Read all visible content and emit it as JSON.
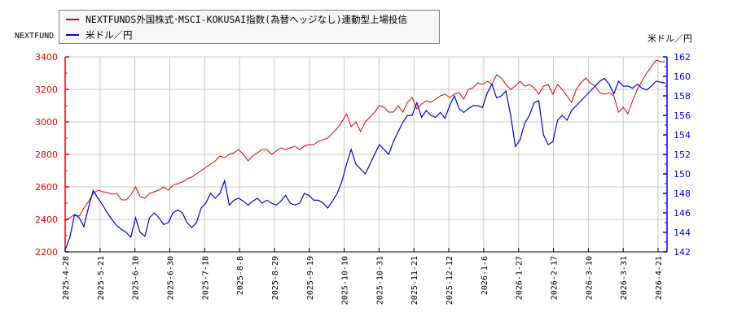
{
  "legend": {
    "series1_label": "NEXTFUNDS外国株式･MSCI-KOKUSAI指数(為替ヘッジなし)連動型上場投信",
    "series2_label": "米ドル／円"
  },
  "axes": {
    "left_title": "NEXTFUND",
    "right_title": "米ドル／円"
  },
  "colors": {
    "series1": "#dd0000",
    "series2": "#0000dd",
    "left_axis": "#ee0000",
    "right_axis": "#0000ee",
    "grid": "#c8c8c8"
  },
  "chart_data": {
    "type": "line",
    "title": "",
    "xlabel": "",
    "ylabel_left": "NEXTFUND",
    "ylabel_right": "米ドル／円",
    "ylim_left": [
      2200,
      3400
    ],
    "ylim_right": [
      142,
      162
    ],
    "yticks_left": [
      2200,
      2400,
      2600,
      2800,
      3000,
      3200,
      3400
    ],
    "yticks_right": [
      142,
      144,
      146,
      148,
      150,
      152,
      154,
      156,
      158,
      160,
      162
    ],
    "x_tick_labels": [
      "2025-4-28",
      "2025-5-21",
      "2025-6-10",
      "2025-6-30",
      "2025-7-18",
      "2025-8-8",
      "2025-8-29",
      "2025-9-19",
      "2025-10-10",
      "2025-10-31",
      "2025-11-21",
      "2025-12-12",
      "2026-1-6",
      "2026-1-27",
      "2026-2-17",
      "2026-3-10",
      "2026-3-31",
      "2026-4-21"
    ],
    "grid": true,
    "legend_position": "top-left",
    "series": [
      {
        "name": "NEXTFUNDS外国株式･MSCI-KOKUSAI指数(為替ヘッジなし)連動型上場投信",
        "axis": "left",
        "values_by_tick": [
          2390,
          2580,
          2550,
          2620,
          2700,
          2790,
          2840,
          2850,
          2920,
          3070,
          3110,
          3150,
          3220,
          3280,
          3200,
          3200,
          3150,
          3370
        ],
        "points": [
          [
            0,
            2390
          ],
          [
            1,
            2410
          ],
          [
            2,
            2430
          ],
          [
            3,
            2420
          ],
          [
            4,
            2470
          ],
          [
            5,
            2510
          ],
          [
            6,
            2560
          ],
          [
            7,
            2580
          ],
          [
            8,
            2570
          ],
          [
            9,
            2565
          ],
          [
            10,
            2555
          ],
          [
            11,
            2560
          ],
          [
            12,
            2520
          ],
          [
            13,
            2520
          ],
          [
            14,
            2550
          ],
          [
            15,
            2600
          ],
          [
            16,
            2540
          ],
          [
            17,
            2530
          ],
          [
            18,
            2560
          ],
          [
            19,
            2570
          ],
          [
            20,
            2580
          ],
          [
            21,
            2600
          ],
          [
            22,
            2580
          ],
          [
            23,
            2610
          ],
          [
            24,
            2620
          ],
          [
            25,
            2630
          ],
          [
            26,
            2650
          ],
          [
            27,
            2660
          ],
          [
            28,
            2680
          ],
          [
            29,
            2700
          ],
          [
            30,
            2720
          ],
          [
            31,
            2740
          ],
          [
            32,
            2760
          ],
          [
            33,
            2790
          ],
          [
            34,
            2780
          ],
          [
            35,
            2800
          ],
          [
            36,
            2810
          ],
          [
            37,
            2830
          ],
          [
            38,
            2800
          ],
          [
            39,
            2760
          ],
          [
            40,
            2790
          ],
          [
            41,
            2810
          ],
          [
            42,
            2830
          ],
          [
            43,
            2830
          ],
          [
            44,
            2800
          ],
          [
            45,
            2820
          ],
          [
            46,
            2840
          ],
          [
            47,
            2830
          ],
          [
            48,
            2840
          ],
          [
            49,
            2850
          ],
          [
            50,
            2830
          ],
          [
            51,
            2850
          ],
          [
            52,
            2860
          ],
          [
            53,
            2860
          ],
          [
            54,
            2880
          ],
          [
            55,
            2890
          ],
          [
            56,
            2900
          ],
          [
            57,
            2930
          ],
          [
            58,
            2960
          ],
          [
            59,
            3000
          ],
          [
            60,
            3050
          ],
          [
            61,
            2970
          ],
          [
            62,
            3000
          ],
          [
            63,
            2940
          ],
          [
            64,
            3000
          ],
          [
            65,
            3030
          ],
          [
            66,
            3060
          ],
          [
            67,
            3100
          ],
          [
            68,
            3090
          ],
          [
            69,
            3060
          ],
          [
            70,
            3060
          ],
          [
            71,
            3100
          ],
          [
            72,
            3060
          ],
          [
            73,
            3120
          ],
          [
            74,
            3150
          ],
          [
            75,
            3080
          ],
          [
            76,
            3110
          ],
          [
            77,
            3130
          ],
          [
            78,
            3120
          ],
          [
            79,
            3140
          ],
          [
            80,
            3160
          ],
          [
            81,
            3170
          ],
          [
            82,
            3150
          ],
          [
            83,
            3170
          ],
          [
            84,
            3180
          ],
          [
            85,
            3140
          ],
          [
            86,
            3200
          ],
          [
            87,
            3210
          ],
          [
            88,
            3240
          ],
          [
            89,
            3230
          ],
          [
            90,
            3250
          ],
          [
            91,
            3230
          ],
          [
            92,
            3290
          ],
          [
            93,
            3270
          ],
          [
            94,
            3230
          ],
          [
            95,
            3200
          ],
          [
            96,
            3220
          ],
          [
            97,
            3250
          ],
          [
            98,
            3220
          ],
          [
            99,
            3230
          ],
          [
            100,
            3210
          ],
          [
            101,
            3170
          ],
          [
            102,
            3220
          ],
          [
            103,
            3230
          ],
          [
            104,
            3170
          ],
          [
            105,
            3230
          ],
          [
            106,
            3200
          ],
          [
            107,
            3160
          ],
          [
            108,
            3120
          ],
          [
            109,
            3200
          ],
          [
            110,
            3240
          ],
          [
            111,
            3270
          ],
          [
            112,
            3240
          ],
          [
            113,
            3220
          ],
          [
            114,
            3180
          ],
          [
            115,
            3170
          ],
          [
            116,
            3180
          ],
          [
            117,
            3160
          ],
          [
            118,
            3060
          ],
          [
            119,
            3090
          ],
          [
            120,
            3050
          ],
          [
            121,
            3130
          ],
          [
            122,
            3200
          ],
          [
            123,
            3250
          ],
          [
            124,
            3300
          ],
          [
            125,
            3340
          ],
          [
            126,
            3380
          ],
          [
            127,
            3370
          ],
          [
            128,
            3370
          ]
        ]
      },
      {
        "name": "米ドル／円",
        "axis": "right",
        "values_by_tick": [
          142.2,
          145.5,
          145.0,
          144.8,
          147.0,
          147.5,
          147.0,
          147.0,
          151.5,
          153.0,
          157.3,
          156.5,
          157.5,
          152.8,
          153.0,
          158.0,
          159.8,
          159.3
        ],
        "points": [
          [
            0,
            142.2
          ],
          [
            1,
            143.5
          ],
          [
            2,
            145.8
          ],
          [
            3,
            145.5
          ],
          [
            4,
            144.6
          ],
          [
            5,
            146.6
          ],
          [
            6,
            148.3
          ],
          [
            7,
            147.5
          ],
          [
            8,
            146.8
          ],
          [
            9,
            146.0
          ],
          [
            10,
            145.3
          ],
          [
            11,
            144.7
          ],
          [
            12,
            144.3
          ],
          [
            13,
            144.0
          ],
          [
            14,
            143.5
          ],
          [
            15,
            145.5
          ],
          [
            16,
            144.0
          ],
          [
            17,
            143.6
          ],
          [
            18,
            145.5
          ],
          [
            19,
            146.0
          ],
          [
            20,
            145.5
          ],
          [
            21,
            144.8
          ],
          [
            22,
            145.0
          ],
          [
            23,
            146.0
          ],
          [
            24,
            146.3
          ],
          [
            25,
            146.0
          ],
          [
            26,
            145.0
          ],
          [
            27,
            144.5
          ],
          [
            28,
            145.0
          ],
          [
            29,
            146.5
          ],
          [
            30,
            147.0
          ],
          [
            31,
            148.0
          ],
          [
            32,
            147.5
          ],
          [
            33,
            148.0
          ],
          [
            34,
            149.3
          ],
          [
            35,
            146.8
          ],
          [
            36,
            147.3
          ],
          [
            37,
            147.5
          ],
          [
            38,
            147.2
          ],
          [
            39,
            146.8
          ],
          [
            40,
            147.2
          ],
          [
            41,
            147.5
          ],
          [
            42,
            147.0
          ],
          [
            43,
            147.3
          ],
          [
            44,
            147.0
          ],
          [
            45,
            146.8
          ],
          [
            46,
            147.2
          ],
          [
            47,
            147.8
          ],
          [
            48,
            147.0
          ],
          [
            49,
            146.8
          ],
          [
            50,
            147.0
          ],
          [
            51,
            148.0
          ],
          [
            52,
            147.8
          ],
          [
            53,
            147.3
          ],
          [
            54,
            147.3
          ],
          [
            55,
            147.0
          ],
          [
            56,
            146.5
          ],
          [
            57,
            147.2
          ],
          [
            58,
            148.0
          ],
          [
            59,
            149.2
          ],
          [
            60,
            151.0
          ],
          [
            61,
            152.5
          ],
          [
            62,
            151.0
          ],
          [
            63,
            150.5
          ],
          [
            64,
            150.0
          ],
          [
            65,
            151.0
          ],
          [
            66,
            152.0
          ],
          [
            67,
            153.0
          ],
          [
            68,
            152.5
          ],
          [
            69,
            152.0
          ],
          [
            70,
            153.3
          ],
          [
            71,
            154.3
          ],
          [
            72,
            155.3
          ],
          [
            73,
            156.0
          ],
          [
            74,
            156.0
          ],
          [
            75,
            157.3
          ],
          [
            76,
            155.8
          ],
          [
            77,
            156.5
          ],
          [
            78,
            156.0
          ],
          [
            79,
            155.8
          ],
          [
            80,
            156.3
          ],
          [
            81,
            155.7
          ],
          [
            82,
            157.0
          ],
          [
            83,
            158.0
          ],
          [
            84,
            156.7
          ],
          [
            85,
            156.3
          ],
          [
            86,
            156.7
          ],
          [
            87,
            157.0
          ],
          [
            88,
            157.0
          ],
          [
            89,
            156.8
          ],
          [
            90,
            158.3
          ],
          [
            91,
            159.2
          ],
          [
            92,
            157.8
          ],
          [
            93,
            158.0
          ],
          [
            94,
            158.5
          ],
          [
            95,
            156.0
          ],
          [
            96,
            152.8
          ],
          [
            97,
            153.5
          ],
          [
            98,
            155.2
          ],
          [
            99,
            156.0
          ],
          [
            100,
            157.3
          ],
          [
            101,
            157.5
          ],
          [
            102,
            154.0
          ],
          [
            103,
            153.0
          ],
          [
            104,
            153.3
          ],
          [
            105,
            155.5
          ],
          [
            106,
            156.0
          ],
          [
            107,
            155.5
          ],
          [
            108,
            156.5
          ],
          [
            109,
            157.0
          ],
          [
            110,
            157.5
          ],
          [
            111,
            158.0
          ],
          [
            112,
            158.5
          ],
          [
            113,
            159.0
          ],
          [
            114,
            159.5
          ],
          [
            115,
            159.8
          ],
          [
            116,
            159.2
          ],
          [
            117,
            158.2
          ],
          [
            118,
            159.5
          ],
          [
            119,
            159.0
          ],
          [
            120,
            159.0
          ],
          [
            121,
            158.8
          ],
          [
            122,
            159.2
          ],
          [
            123,
            158.8
          ],
          [
            124,
            158.6
          ],
          [
            125,
            159.0
          ],
          [
            126,
            159.5
          ],
          [
            127,
            159.4
          ],
          [
            128,
            159.3
          ]
        ]
      }
    ]
  }
}
